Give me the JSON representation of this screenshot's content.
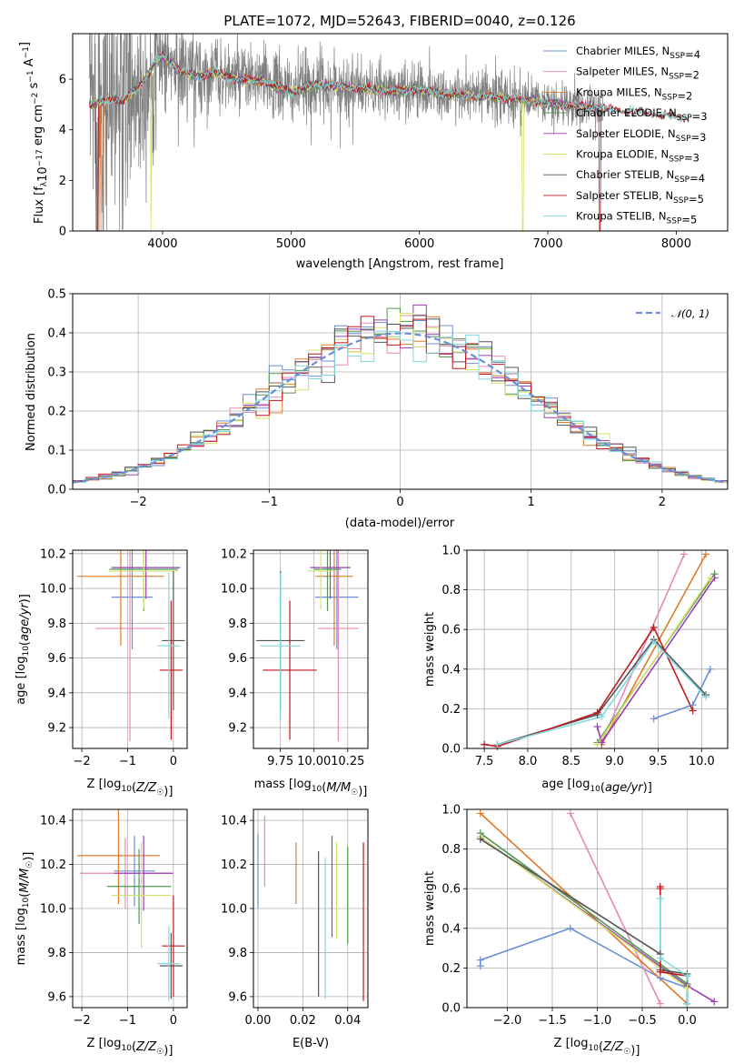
{
  "colors": {
    "Chabrier MILES": "#6a8fd8",
    "Salpeter MILES": "#e68ab5",
    "Kroupa MILES": "#e07b2a",
    "Chabrier ELODIE": "#4f9a50",
    "Salpeter ELODIE": "#9a3fb8",
    "Kroupa ELODIE": "#d2e36a",
    "Chabrier STELIB": "#555555",
    "Salpeter STELIB": "#c0181e",
    "Kroupa STELIB": "#7fd8dd",
    "data": "#808080",
    "normal": "#6a8fd8"
  },
  "chart_data": [
    {
      "id": "spectrum",
      "type": "line",
      "title": "PLATE=1072, MJD=52643, FIBERID=0040, z=0.126",
      "xlabel": "wavelength [Angstrom, rest frame]",
      "ylabel": "Flux [f_λ10^-17 erg cm^-2 s^-1 A^-1]",
      "xlim": [
        3300,
        8400
      ],
      "ylim": [
        0,
        7.8
      ],
      "xticks": [
        4000,
        5000,
        6000,
        7000,
        8000
      ],
      "yticks": [
        0,
        2,
        4,
        6
      ],
      "legend": [
        "Chabrier MILES, N_SSP=4",
        "Salpeter MILES, N_SSP=2",
        "Kroupa MILES, N_SSP=2",
        "Chabrier ELODIE, N_SSP=3",
        "Salpeter ELODIE, N_SSP=3",
        "Kroupa ELODIE, N_SSP=3",
        "Chabrier STELIB, N_SSP=4",
        "Salpeter STELIB, N_SSP=5",
        "Kroupa STELIB, N_SSP=5"
      ],
      "continuum": {
        "x": [
          3450,
          3600,
          3700,
          3800,
          3900,
          3950,
          4000,
          4100,
          4200,
          4300,
          4400,
          4500,
          4600,
          4800,
          5000,
          5200,
          5400,
          5600,
          5800,
          6000,
          6200,
          6400,
          6600,
          6800,
          7000,
          7200,
          7400,
          7600,
          7800,
          8000,
          8100
        ],
        "y": [
          5.0,
          5.2,
          5.2,
          5.6,
          6.3,
          6.8,
          6.9,
          6.5,
          6.2,
          6.1,
          6.3,
          6.1,
          6.0,
          5.9,
          5.5,
          5.8,
          5.7,
          5.6,
          5.55,
          5.6,
          5.45,
          5.35,
          5.3,
          5.2,
          5.05,
          4.95,
          4.85,
          4.75,
          4.65,
          4.5,
          4.45
        ]
      }
    },
    {
      "id": "residuals",
      "type": "bar",
      "xlabel": "(data-model)/error",
      "ylabel": "Normed distribution",
      "xlim": [
        -2.5,
        2.5
      ],
      "ylim": [
        0,
        0.5
      ],
      "xticks": [
        -2,
        -1,
        0,
        1,
        2
      ],
      "yticks": [
        0.0,
        0.1,
        0.2,
        0.3,
        0.4,
        0.5
      ],
      "legend": [
        "𝒩(0, 1)"
      ],
      "bin_width": 0.1
    },
    {
      "id": "age_vs_Z",
      "type": "scatter",
      "xlabel": "Z [log10(Z/Z☉)]",
      "ylabel": "age  [log10(age/yr)]",
      "xlim": [
        -2.2,
        0.3
      ],
      "ylim": [
        9.08,
        10.22
      ],
      "xticks": [
        -2,
        -1,
        0
      ],
      "yticks": [
        9.2,
        9.4,
        9.6,
        9.8,
        10.0,
        10.2
      ],
      "points": [
        {
          "model": "Chabrier MILES",
          "x": -0.9,
          "xerr": 0.45,
          "y": 9.95,
          "yerr": 0.3
        },
        {
          "model": "Salpeter MILES",
          "x": -0.95,
          "xerr": 0.75,
          "y": 9.77,
          "yerr": 0.65
        },
        {
          "model": "Kroupa MILES",
          "x": -1.15,
          "xerr": 0.95,
          "y": 10.07,
          "yerr": 0.4
        },
        {
          "model": "Chabrier ELODIE",
          "x": -0.65,
          "xerr": 0.75,
          "y": 10.11,
          "yerr": 0.24
        },
        {
          "model": "Salpeter ELODIE",
          "x": -0.6,
          "xerr": 0.75,
          "y": 10.12,
          "yerr": 0.18
        },
        {
          "model": "Kroupa ELODIE",
          "x": -0.65,
          "xerr": 0.75,
          "y": 10.1,
          "yerr": 0.22
        },
        {
          "model": "Chabrier STELIB",
          "x": 0.0,
          "xerr": 0.25,
          "y": 9.7,
          "yerr": 0.4
        },
        {
          "model": "Salpeter STELIB",
          "x": -0.05,
          "xerr": 0.25,
          "y": 9.53,
          "yerr": 0.4
        },
        {
          "model": "Kroupa STELIB",
          "x": -0.1,
          "xerr": 0.25,
          "y": 9.67,
          "yerr": 0.42
        }
      ]
    },
    {
      "id": "age_vs_mass",
      "type": "scatter",
      "xlabel": "mass [log10(M/M☉)]",
      "ylabel": "",
      "xlim": [
        9.55,
        10.4
      ],
      "ylim": [
        9.08,
        10.22
      ],
      "xticks": [
        9.75,
        10.0,
        10.25
      ],
      "yticks": [
        9.2,
        9.4,
        9.6,
        9.8,
        10.0,
        10.2
      ],
      "points": [
        {
          "model": "Chabrier MILES",
          "x": 10.17,
          "xerr": 0.16,
          "y": 9.95,
          "yerr": 0.3
        },
        {
          "model": "Salpeter MILES",
          "x": 10.18,
          "xerr": 0.15,
          "y": 9.77,
          "yerr": 0.65
        },
        {
          "model": "Kroupa MILES",
          "x": 10.15,
          "xerr": 0.14,
          "y": 10.07,
          "yerr": 0.4
        },
        {
          "model": "Chabrier ELODIE",
          "x": 10.1,
          "xerr": 0.1,
          "y": 10.11,
          "yerr": 0.24
        },
        {
          "model": "Salpeter ELODIE",
          "x": 10.12,
          "xerr": 0.15,
          "y": 10.12,
          "yerr": 0.18
        },
        {
          "model": "Kroupa ELODIE",
          "x": 10.05,
          "xerr": 0.1,
          "y": 10.1,
          "yerr": 0.22
        },
        {
          "model": "Chabrier STELIB",
          "x": 9.75,
          "xerr": 0.18,
          "y": 9.7,
          "yerr": 0.4
        },
        {
          "model": "Salpeter STELIB",
          "x": 9.82,
          "xerr": 0.2,
          "y": 9.53,
          "yerr": 0.4
        },
        {
          "model": "Kroupa STELIB",
          "x": 9.75,
          "xerr": 0.15,
          "y": 9.67,
          "yerr": 0.42
        }
      ]
    },
    {
      "id": "weight_vs_age",
      "type": "line",
      "xlabel": "age  [log10(age/yr)]",
      "ylabel": "mass weight",
      "xlim": [
        7.3,
        10.3
      ],
      "ylim": [
        0,
        1
      ],
      "xticks": [
        7.5,
        8.0,
        8.5,
        9.0,
        9.5,
        10.0
      ],
      "yticks": [
        0.0,
        0.2,
        0.4,
        0.6,
        0.8,
        1.0
      ],
      "series": [
        {
          "model": "Chabrier MILES",
          "x": [
            9.45,
            9.9,
            10.1
          ],
          "y": [
            0.15,
            0.22,
            0.4
          ]
        },
        {
          "model": "Salpeter MILES",
          "x": [
            8.85,
            9.8
          ],
          "y": [
            0.03,
            0.98
          ]
        },
        {
          "model": "Kroupa MILES",
          "x": [
            8.85,
            10.05
          ],
          "y": [
            0.02,
            0.98
          ]
        },
        {
          "model": "Chabrier ELODIE",
          "x": [
            8.8,
            10.15
          ],
          "y": [
            0.03,
            0.88
          ]
        },
        {
          "model": "Salpeter ELODIE",
          "x": [
            8.8,
            8.85,
            10.15
          ],
          "y": [
            0.11,
            0.03,
            0.86
          ]
        },
        {
          "model": "Kroupa ELODIE",
          "x": [
            8.8,
            10.1
          ],
          "y": [
            0.02,
            0.86
          ]
        },
        {
          "model": "Chabrier STELIB",
          "x": [
            7.65,
            8.8,
            9.45,
            10.05
          ],
          "y": [
            0.02,
            0.17,
            0.55,
            0.27
          ]
        },
        {
          "model": "Salpeter STELIB",
          "x": [
            7.5,
            7.65,
            8.8,
            9.45,
            9.9
          ],
          "y": [
            0.02,
            0.01,
            0.18,
            0.61,
            0.19
          ]
        },
        {
          "model": "Kroupa STELIB",
          "x": [
            7.65,
            8.85,
            9.45,
            10.05
          ],
          "y": [
            0.02,
            0.16,
            0.54,
            0.26
          ]
        }
      ]
    },
    {
      "id": "mass_vs_Z",
      "type": "scatter",
      "xlabel": "Z [log10(Z/Z☉)]",
      "ylabel": "mass [log10(M/M☉)]",
      "xlim": [
        -2.2,
        0.3
      ],
      "ylim": [
        9.55,
        10.45
      ],
      "xticks": [
        -2,
        -1,
        0
      ],
      "yticks": [
        9.6,
        9.8,
        10.0,
        10.2,
        10.4
      ],
      "points": [
        {
          "model": "Chabrier MILES",
          "x": -0.85,
          "xerr": 0.45,
          "y": 10.17,
          "yerr": 0.16
        },
        {
          "model": "Salpeter MILES",
          "x": -1.05,
          "xerr": 1.0,
          "y": 10.16,
          "yerr": 0.16
        },
        {
          "model": "Kroupa MILES",
          "x": -1.2,
          "xerr": 0.9,
          "y": 10.24,
          "yerr": 0.22
        },
        {
          "model": "Chabrier ELODIE",
          "x": -0.75,
          "xerr": 0.7,
          "y": 10.1,
          "yerr": 0.17
        },
        {
          "model": "Salpeter ELODIE",
          "x": -0.65,
          "xerr": 0.65,
          "y": 10.16,
          "yerr": 0.17
        },
        {
          "model": "Kroupa ELODIE",
          "x": -0.7,
          "xerr": 0.65,
          "y": 10.06,
          "yerr": 0.24
        },
        {
          "model": "Chabrier STELIB",
          "x": -0.05,
          "xerr": 0.25,
          "y": 9.74,
          "yerr": 0.15
        },
        {
          "model": "Salpeter STELIB",
          "x": 0.0,
          "xerr": 0.25,
          "y": 9.83,
          "yerr": 0.23
        },
        {
          "model": "Kroupa STELIB",
          "x": -0.1,
          "xerr": 0.25,
          "y": 9.75,
          "yerr": 0.17
        }
      ]
    },
    {
      "id": "mass_vs_ebv",
      "type": "scatter",
      "xlabel": "E(B-V)",
      "ylabel": "",
      "xlim": [
        -0.002,
        0.049
      ],
      "ylim": [
        9.55,
        10.45
      ],
      "xticks": [
        0.0,
        0.02,
        0.04
      ],
      "yticks": [
        9.6,
        9.8,
        10.0,
        10.2,
        10.4
      ],
      "points": [
        {
          "model": "Chabrier MILES",
          "x": 0.0,
          "y": 10.17,
          "yerr": 0.17
        },
        {
          "model": "Salpeter MILES",
          "x": 0.003,
          "y": 10.26,
          "yerr": 0.16
        },
        {
          "model": "Kroupa MILES",
          "x": 0.017,
          "y": 10.16,
          "yerr": 0.14
        },
        {
          "model": "Chabrier ELODIE",
          "x": 0.04,
          "y": 10.06,
          "yerr": 0.22
        },
        {
          "model": "Salpeter ELODIE",
          "x": 0.033,
          "y": 10.1,
          "yerr": 0.23
        },
        {
          "model": "Kroupa ELODIE",
          "x": 0.035,
          "y": 10.08,
          "yerr": 0.22
        },
        {
          "model": "Chabrier STELIB",
          "x": 0.027,
          "y": 9.93,
          "yerr": 0.33
        },
        {
          "model": "Salpeter STELIB",
          "x": 0.047,
          "y": 9.94,
          "yerr": 0.36
        },
        {
          "model": "Kroupa STELIB",
          "x": 0.03,
          "y": 9.91,
          "yerr": 0.32
        }
      ]
    },
    {
      "id": "weight_vs_Z",
      "type": "line",
      "xlabel": "Z [log10(Z/Z☉)]",
      "ylabel": "mass weight",
      "xlim": [
        -2.45,
        0.45
      ],
      "ylim": [
        0,
        1
      ],
      "xticks": [
        -2.0,
        -1.5,
        -1.0,
        -0.5,
        0.0
      ],
      "yticks": [
        0.0,
        0.2,
        0.4,
        0.6,
        0.8,
        1.0
      ],
      "series": [
        {
          "model": "Chabrier MILES",
          "x": [
            -2.3,
            -2.3,
            -1.3,
            -0.3,
            0.0
          ],
          "y": [
            0.21,
            0.24,
            0.4,
            0.15,
            0.1
          ]
        },
        {
          "model": "Salpeter MILES",
          "x": [
            -1.3,
            -0.3
          ],
          "y": [
            0.98,
            0.02
          ]
        },
        {
          "model": "Kroupa MILES",
          "x": [
            -2.3,
            0.0
          ],
          "y": [
            0.98,
            0.02
          ]
        },
        {
          "model": "Chabrier ELODIE",
          "x": [
            -2.3,
            0.0
          ],
          "y": [
            0.88,
            0.12
          ]
        },
        {
          "model": "Salpeter ELODIE",
          "x": [
            -2.3,
            0.0,
            0.3
          ],
          "y": [
            0.86,
            0.11,
            0.03
          ]
        },
        {
          "model": "Kroupa ELODIE",
          "x": [
            -2.3,
            0.0
          ],
          "y": [
            0.86,
            0.1
          ]
        },
        {
          "model": "Chabrier STELIB",
          "x": [
            -2.3,
            -0.3,
            -0.3,
            0.0,
            0.0
          ],
          "y": [
            0.85,
            0.27,
            0.19,
            0.17,
            0.02
          ]
        },
        {
          "model": "Salpeter STELIB",
          "x": [
            -0.3,
            -0.3,
            -0.3,
            0.0,
            0.0
          ],
          "y": [
            0.61,
            0.6,
            0.18,
            0.16,
            0.02
          ]
        },
        {
          "model": "Kroupa STELIB",
          "x": [
            -0.3,
            -0.3,
            0.0,
            0.0
          ],
          "y": [
            0.55,
            0.25,
            0.16,
            0.02
          ]
        }
      ]
    }
  ]
}
